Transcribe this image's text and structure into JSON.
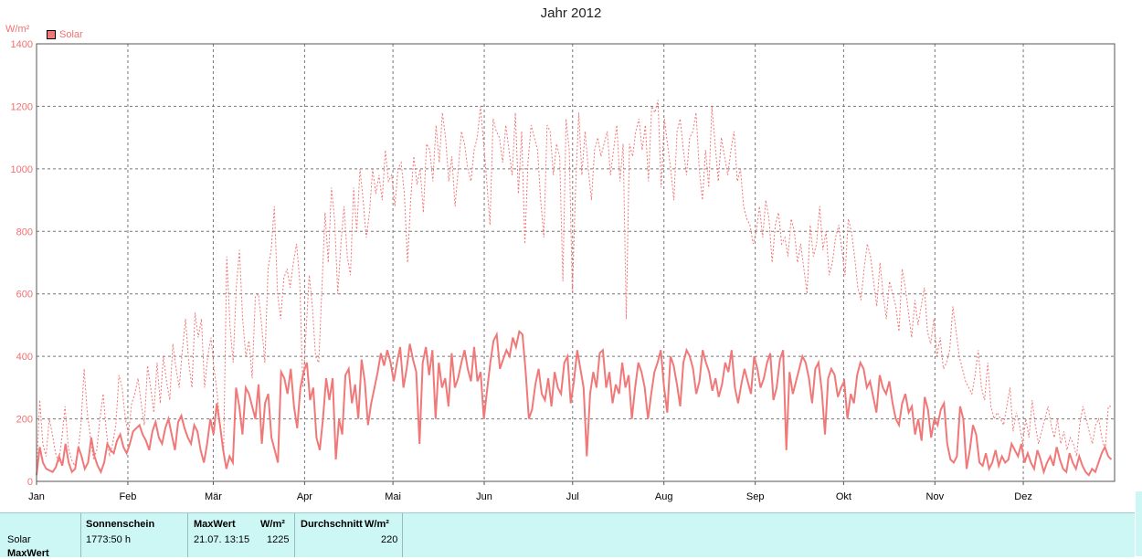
{
  "chart_data": {
    "type": "line",
    "title": "Jahr 2012",
    "ylabel": "W/m²",
    "ylim": [
      0,
      1400
    ],
    "yticks": [
      0,
      200,
      400,
      600,
      800,
      1000,
      1200,
      1400
    ],
    "xlim": [
      0,
      366
    ],
    "month_ticks": [
      {
        "label": "Jan",
        "day": 0
      },
      {
        "label": "Feb",
        "day": 31
      },
      {
        "label": "Mär",
        "day": 60
      },
      {
        "label": "Apr",
        "day": 91
      },
      {
        "label": "Mai",
        "day": 121
      },
      {
        "label": "Jun",
        "day": 152
      },
      {
        "label": "Jul",
        "day": 182
      },
      {
        "label": "Aug",
        "day": 213
      },
      {
        "label": "Sep",
        "day": 244
      },
      {
        "label": "Okt",
        "day": 274
      },
      {
        "label": "Nov",
        "day": 305
      },
      {
        "label": "Dez",
        "day": 335
      }
    ],
    "grid": true,
    "legend": "top-left",
    "series": [
      {
        "name": "Solar",
        "style": "dotted",
        "color": "#f07878",
        "values": [
          30,
          260,
          120,
          80,
          200,
          150,
          90,
          60,
          140,
          240,
          110,
          70,
          50,
          90,
          180,
          360,
          220,
          140,
          70,
          100,
          200,
          280,
          160,
          80,
          120,
          180,
          340,
          300,
          200,
          150,
          250,
          280,
          330,
          250,
          180,
          370,
          300,
          220,
          380,
          250,
          400,
          320,
          260,
          440,
          360,
          300,
          420,
          520,
          380,
          300,
          540,
          460,
          520,
          300,
          400,
          460,
          360,
          280,
          160,
          100,
          720,
          500,
          380,
          620,
          740,
          520,
          400,
          450,
          330,
          590,
          600,
          500,
          380,
          680,
          740,
          880,
          600,
          520,
          650,
          680,
          620,
          700,
          760,
          640,
          300,
          480,
          660,
          560,
          400,
          380,
          620,
          860,
          700,
          940,
          840,
          600,
          760,
          880,
          720,
          660,
          940,
          800,
          1000,
          900,
          780,
          860,
          1000,
          920,
          980,
          900,
          1060,
          960,
          980,
          880,
          1000,
          1020,
          920,
          700,
          900,
          1040,
          950,
          1000,
          860,
          1080,
          1060,
          960,
          1140,
          1020,
          1180,
          1100,
          960,
          1040,
          880,
          1000,
          1120,
          1080,
          1000,
          960,
          1060,
          1100,
          1200,
          1080,
          960,
          820,
          1160,
          1120,
          1100,
          1020,
          1140,
          1060,
          980,
          1180,
          920,
          1120,
          760,
          1020,
          1140,
          1100,
          1060,
          900,
          780,
          1140,
          1120,
          980,
          1080,
          1040,
          640,
          1160,
          1060,
          600,
          940,
          1180,
          980,
          1120,
          1000,
          900,
          1060,
          1100,
          1040,
          1080,
          1120,
          980,
          1060,
          1140,
          960,
          1080,
          520,
          1080,
          1040,
          1120,
          1160,
          1060,
          1140,
          960,
          1200,
          1180,
          1220,
          940,
          1160,
          1080,
          1000,
          900,
          1120,
          1160,
          1060,
          980,
          1100,
          1120,
          1180,
          1000,
          900,
          1060,
          940,
          1200,
          1080,
          960,
          1100,
          1040,
          980,
          1060,
          1120,
          960,
          1000,
          880,
          840,
          820,
          760,
          800,
          880,
          780,
          900,
          840,
          700,
          820,
          860,
          760,
          780,
          720,
          840,
          800,
          700,
          760,
          680,
          600,
          820,
          720,
          760,
          880,
          740,
          800,
          660,
          700,
          780,
          820,
          740,
          660,
          840,
          800,
          720,
          620,
          580,
          680,
          760,
          720,
          640,
          560,
          700,
          600,
          520,
          640,
          600,
          560,
          480,
          680,
          620,
          540,
          460,
          580,
          500,
          560,
          620,
          480,
          440,
          520,
          400,
          460,
          360,
          380,
          420,
          560,
          480,
          400,
          360,
          320,
          300,
          280,
          340,
          420,
          300,
          260,
          380,
          240,
          200,
          220,
          200,
          180,
          240,
          300,
          160,
          220,
          180,
          120,
          200,
          140,
          260,
          180,
          120,
          160,
          200,
          240,
          180,
          140,
          200,
          120,
          160,
          100,
          140,
          120,
          80,
          180,
          240,
          200,
          160,
          120,
          180,
          200,
          140,
          100,
          240,
          240
        ]
      },
      {
        "name": "Solar",
        "style": "solid",
        "color": "#f07878",
        "values": [
          20,
          110,
          60,
          40,
          35,
          30,
          45,
          80,
          50,
          120,
          60,
          30,
          40,
          110,
          80,
          40,
          60,
          140,
          80,
          50,
          30,
          60,
          120,
          100,
          90,
          130,
          150,
          110,
          90,
          120,
          160,
          170,
          180,
          150,
          130,
          100,
          160,
          190,
          140,
          120,
          170,
          200,
          150,
          100,
          190,
          210,
          170,
          140,
          120,
          180,
          160,
          100,
          60,
          120,
          200,
          150,
          250,
          180,
          100,
          40,
          80,
          60,
          300,
          240,
          150,
          300,
          280,
          240,
          200,
          310,
          120,
          250,
          280,
          140,
          100,
          60,
          350,
          330,
          280,
          360,
          240,
          170,
          300,
          350,
          380,
          260,
          300,
          140,
          100,
          200,
          330,
          260,
          330,
          70,
          200,
          150,
          340,
          360,
          250,
          310,
          200,
          390,
          320,
          180,
          250,
          300,
          350,
          410,
          370,
          420,
          380,
          320,
          380,
          430,
          300,
          360,
          440,
          390,
          350,
          120,
          380,
          430,
          340,
          420,
          200,
          380,
          300,
          330,
          240,
          410,
          300,
          330,
          380,
          420,
          360,
          320,
          430,
          320,
          350,
          200,
          290,
          380,
          450,
          470,
          360,
          390,
          420,
          400,
          460,
          430,
          480,
          470,
          350,
          200,
          230,
          310,
          360,
          280,
          260,
          330,
          240,
          350,
          300,
          280,
          380,
          400,
          250,
          320,
          420,
          360,
          300,
          80,
          280,
          350,
          300,
          410,
          420,
          300,
          350,
          250,
          310,
          280,
          380,
          300,
          340,
          200,
          300,
          380,
          350,
          300,
          200,
          280,
          350,
          380,
          420,
          300,
          220,
          400,
          370,
          310,
          240,
          380,
          420,
          400,
          360,
          280,
          320,
          420,
          380,
          350,
          290,
          330,
          270,
          310,
          380,
          350,
          420,
          300,
          250,
          310,
          360,
          320,
          280,
          400,
          360,
          300,
          330,
          380,
          410,
          260,
          300,
          390,
          420,
          100,
          350,
          280,
          320,
          360,
          400,
          380,
          330,
          250,
          360,
          380,
          290,
          150,
          330,
          360,
          340,
          270,
          300,
          320,
          200,
          280,
          250,
          340,
          380,
          360,
          300,
          320,
          270,
          220,
          340,
          300,
          280,
          320,
          250,
          200,
          180,
          250,
          280,
          220,
          240,
          150,
          200,
          130,
          270,
          230,
          140,
          200,
          180,
          230,
          250,
          120,
          70,
          60,
          80,
          240,
          200,
          40,
          100,
          180,
          150,
          60,
          50,
          90,
          40,
          60,
          100,
          50,
          80,
          60,
          70,
          120,
          100,
          80,
          120,
          60,
          90,
          60,
          40,
          100,
          70,
          30,
          60,
          80,
          50,
          110,
          70,
          40,
          30,
          90,
          60,
          40,
          80,
          50,
          30,
          20,
          40,
          30,
          60,
          90,
          110,
          80,
          70
        ]
      }
    ]
  },
  "stats": {
    "row_label": "Solar",
    "row_label_2": "MaxWert",
    "sunshine_header": "Sonnenschein",
    "sunshine_value": "1773:50 h",
    "max_header": "MaxWert",
    "max_unit": "W/m²",
    "max_datetime": "21.07.  13:15",
    "max_value": "1225",
    "avg_header": "Durchschnitt",
    "avg_unit": "W/m²",
    "avg_value": "220"
  }
}
